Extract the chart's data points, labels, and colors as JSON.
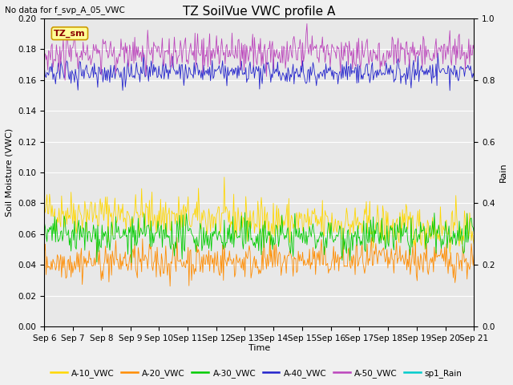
{
  "title": "TZ SoilVue VWC profile A",
  "no_data_text": "No data for f_svp_A_05_VWC",
  "xlabel": "Time",
  "ylabel": "Soil Moisture (VWC)",
  "ylabel_right": "Rain",
  "ylim_left": [
    0.0,
    0.2
  ],
  "ylim_right": [
    0.0,
    1.0
  ],
  "yticks_left": [
    0.0,
    0.02,
    0.04,
    0.06,
    0.08,
    0.1,
    0.12,
    0.14,
    0.16,
    0.18,
    0.2
  ],
  "yticks_right": [
    0.0,
    0.2,
    0.4,
    0.6,
    0.8,
    1.0
  ],
  "n_points": 500,
  "series": {
    "A-10_VWC": {
      "color": "#FFD700",
      "mean": 0.075,
      "trend": -0.012,
      "noise": 0.007
    },
    "A-20_VWC": {
      "color": "#FF8C00",
      "mean": 0.042,
      "trend": 0.001,
      "noise": 0.006
    },
    "A-30_VWC": {
      "color": "#00CC00",
      "mean": 0.059,
      "trend": -0.001,
      "noise": 0.006
    },
    "A-40_VWC": {
      "color": "#2222CC",
      "mean": 0.165,
      "trend": 0.0,
      "noise": 0.004
    },
    "A-50_VWC": {
      "color": "#BB44BB",
      "mean": 0.178,
      "trend": 0.0,
      "noise": 0.006
    },
    "sp1_Rain": {
      "color": "#00CCCC",
      "mean": 0.0,
      "trend": 0.0,
      "noise": 0.0
    }
  },
  "legend_box_color": "#FFFF99",
  "legend_box_border": "#CC9900",
  "legend_box_text": "TZ_sm",
  "background_color": "#E8E8E8",
  "fig_background_color": "#F0F0F0",
  "grid_color": "#FFFFFF",
  "title_fontsize": 11,
  "label_fontsize": 8,
  "tick_fontsize": 7.5
}
